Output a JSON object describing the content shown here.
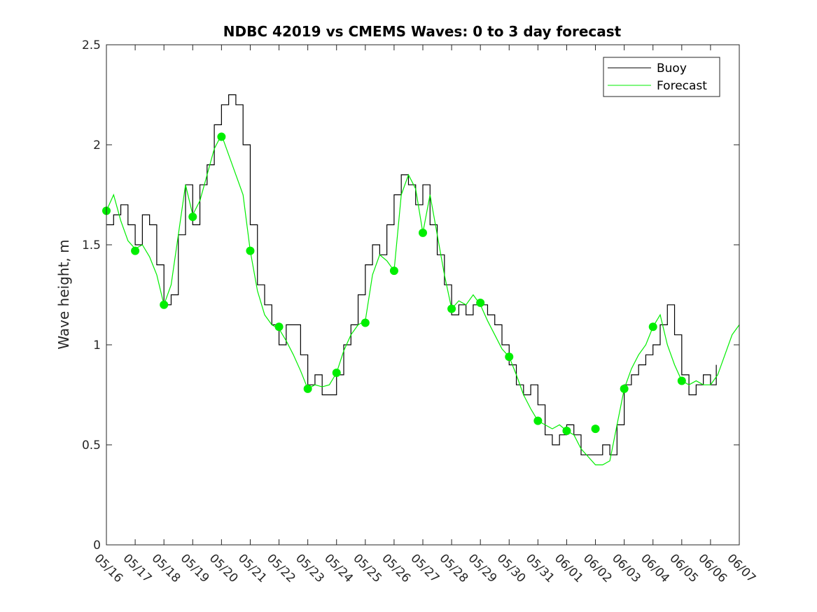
{
  "chart_data": {
    "type": "line",
    "title": "NDBC 42019 vs CMEMS Waves: 0 to 3 day forecast",
    "xlabel": "",
    "ylabel": "Wave height, m",
    "xlim": [
      0,
      22
    ],
    "ylim": [
      0,
      2.5
    ],
    "grid": false,
    "legend_position": "top-right",
    "colors": {
      "buoy": "#000000",
      "forecast": "#00ee00",
      "axis": "#262626"
    },
    "x_ticks": [
      {
        "x": 0,
        "label": "05/16"
      },
      {
        "x": 1,
        "label": "05/17"
      },
      {
        "x": 2,
        "label": "05/18"
      },
      {
        "x": 3,
        "label": "05/19"
      },
      {
        "x": 4,
        "label": "05/20"
      },
      {
        "x": 5,
        "label": "05/21"
      },
      {
        "x": 6,
        "label": "05/22"
      },
      {
        "x": 7,
        "label": "05/23"
      },
      {
        "x": 8,
        "label": "05/24"
      },
      {
        "x": 9,
        "label": "05/25"
      },
      {
        "x": 10,
        "label": "05/26"
      },
      {
        "x": 11,
        "label": "05/27"
      },
      {
        "x": 12,
        "label": "05/28"
      },
      {
        "x": 13,
        "label": "05/29"
      },
      {
        "x": 14,
        "label": "05/30"
      },
      {
        "x": 15,
        "label": "05/31"
      },
      {
        "x": 16,
        "label": "06/01"
      },
      {
        "x": 17,
        "label": "06/02"
      },
      {
        "x": 18,
        "label": "06/03"
      },
      {
        "x": 19,
        "label": "06/04"
      },
      {
        "x": 20,
        "label": "06/05"
      },
      {
        "x": 21,
        "label": "06/06"
      },
      {
        "x": 22,
        "label": "06/07"
      }
    ],
    "y_ticks": [
      {
        "y": 0,
        "label": "0"
      },
      {
        "y": 0.5,
        "label": "0.5"
      },
      {
        "y": 1,
        "label": "1"
      },
      {
        "y": 1.5,
        "label": "1.5"
      },
      {
        "y": 2,
        "label": "2"
      },
      {
        "y": 2.5,
        "label": "2.5"
      }
    ],
    "series": [
      {
        "name": "Buoy",
        "style": "step",
        "x": [
          0,
          0.25,
          0.5,
          0.75,
          1,
          1.25,
          1.5,
          1.75,
          2,
          2.25,
          2.5,
          2.75,
          3,
          3.25,
          3.5,
          3.75,
          4,
          4.25,
          4.5,
          4.75,
          5,
          5.25,
          5.5,
          5.75,
          6,
          6.25,
          6.5,
          6.75,
          7,
          7.25,
          7.5,
          7.75,
          8,
          8.25,
          8.5,
          8.75,
          9,
          9.25,
          9.5,
          9.75,
          10,
          10.25,
          10.5,
          10.75,
          11,
          11.25,
          11.5,
          11.75,
          12,
          12.25,
          12.5,
          12.75,
          13,
          13.25,
          13.5,
          13.75,
          14,
          14.25,
          14.5,
          14.75,
          15,
          15.25,
          15.5,
          15.75,
          16,
          16.25,
          16.5,
          16.75,
          17,
          17.25,
          17.5,
          17.75,
          18,
          18.25,
          18.5,
          18.75,
          19,
          19.25,
          19.5,
          19.75,
          20,
          20.25,
          20.5,
          20.75,
          21,
          21.2
        ],
        "y": [
          1.6,
          1.65,
          1.7,
          1.6,
          1.5,
          1.65,
          1.6,
          1.4,
          1.2,
          1.25,
          1.55,
          1.8,
          1.6,
          1.8,
          1.9,
          2.1,
          2.2,
          2.25,
          2.2,
          2.0,
          1.6,
          1.3,
          1.2,
          1.1,
          1.0,
          1.1,
          1.1,
          0.95,
          0.8,
          0.85,
          0.75,
          0.75,
          0.85,
          1.0,
          1.1,
          1.25,
          1.4,
          1.5,
          1.45,
          1.6,
          1.75,
          1.85,
          1.8,
          1.7,
          1.8,
          1.6,
          1.45,
          1.3,
          1.15,
          1.2,
          1.15,
          1.2,
          1.2,
          1.15,
          1.1,
          1.0,
          0.9,
          0.8,
          0.75,
          0.8,
          0.7,
          0.55,
          0.5,
          0.55,
          0.6,
          0.55,
          0.45,
          0.45,
          0.45,
          0.5,
          0.45,
          0.6,
          0.8,
          0.85,
          0.9,
          0.95,
          1.0,
          1.1,
          1.2,
          1.05,
          0.85,
          0.75,
          0.8,
          0.85,
          0.8,
          0.9
        ]
      },
      {
        "name": "Forecast",
        "style": "line",
        "x": [
          0,
          0.25,
          0.5,
          0.75,
          1,
          1.25,
          1.5,
          1.75,
          2,
          2.25,
          2.5,
          2.75,
          3,
          3.25,
          3.5,
          3.75,
          4,
          4.25,
          4.5,
          4.75,
          5,
          5.25,
          5.5,
          5.75,
          6,
          6.25,
          6.5,
          6.75,
          7,
          7.25,
          7.5,
          7.75,
          8,
          8.25,
          8.5,
          8.75,
          9,
          9.25,
          9.5,
          9.75,
          10,
          10.25,
          10.5,
          10.75,
          11,
          11.25,
          11.5,
          11.75,
          12,
          12.25,
          12.5,
          12.75,
          13,
          13.25,
          13.5,
          13.75,
          14,
          14.25,
          14.5,
          14.75,
          15,
          15.25,
          15.5,
          15.75,
          16,
          16.25,
          16.5,
          16.75,
          17,
          17.25,
          17.5,
          17.75,
          18,
          18.25,
          18.5,
          18.75,
          19,
          19.25,
          19.5,
          19.75,
          20,
          20.25,
          20.5,
          20.75,
          21,
          21.25,
          21.5,
          21.75,
          22
        ],
        "y": [
          1.67,
          1.75,
          1.62,
          1.52,
          1.48,
          1.5,
          1.44,
          1.35,
          1.2,
          1.3,
          1.55,
          1.8,
          1.65,
          1.72,
          1.85,
          1.98,
          2.05,
          1.95,
          1.85,
          1.75,
          1.47,
          1.27,
          1.15,
          1.1,
          1.08,
          1.02,
          0.95,
          0.87,
          0.78,
          0.8,
          0.79,
          0.8,
          0.86,
          0.97,
          1.05,
          1.1,
          1.12,
          1.35,
          1.45,
          1.42,
          1.37,
          1.75,
          1.85,
          1.78,
          1.56,
          1.75,
          1.55,
          1.35,
          1.18,
          1.22,
          1.2,
          1.25,
          1.2,
          1.12,
          1.05,
          0.98,
          0.94,
          0.85,
          0.75,
          0.68,
          0.62,
          0.6,
          0.58,
          0.6,
          0.57,
          0.55,
          0.48,
          0.44,
          0.4,
          0.4,
          0.42,
          0.6,
          0.78,
          0.88,
          0.95,
          1.0,
          1.09,
          1.15,
          1.0,
          0.9,
          0.82,
          0.8,
          0.82,
          0.8,
          0.8,
          0.85,
          0.95,
          1.05,
          1.1
        ]
      }
    ],
    "analysis_points": {
      "x": [
        0,
        1,
        2,
        3,
        4,
        5,
        6,
        7,
        8,
        9,
        10,
        11,
        12,
        13,
        14,
        15,
        16,
        17,
        18,
        19,
        20
      ],
      "y": [
        1.67,
        1.47,
        1.2,
        1.64,
        2.04,
        1.47,
        1.09,
        0.78,
        0.86,
        1.11,
        1.37,
        1.56,
        1.18,
        1.21,
        0.94,
        0.62,
        0.57,
        0.58,
        0.78,
        1.09,
        0.82
      ]
    },
    "legend": [
      {
        "label": "Buoy",
        "color": "#000000"
      },
      {
        "label": "Forecast",
        "color": "#00ee00"
      }
    ]
  }
}
